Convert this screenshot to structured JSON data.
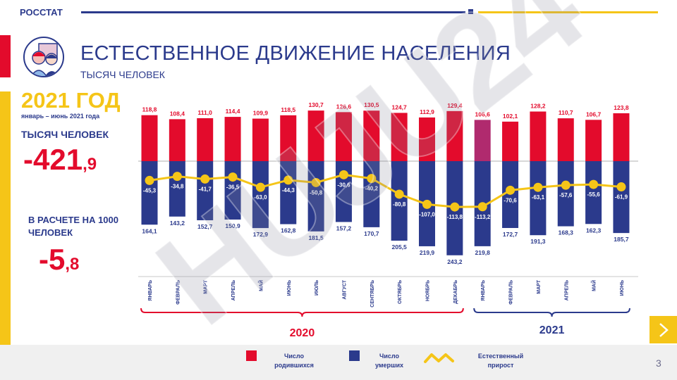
{
  "header": {
    "brand": "РОССТАТ"
  },
  "title": "ЕСТЕСТВЕННОЕ ДВИЖЕНИЕ НАСЕЛЕНИЯ",
  "subtitle": "ТЫСЯЧ ЧЕЛОВЕК",
  "sidebar": {
    "year_title": "2021 ГОД",
    "period": "январь – июнь 2021 года",
    "kpi1_label": "ТЫСЯЧ ЧЕЛОВЕК",
    "kpi1_main": "-421",
    "kpi1_frac": ",9",
    "kpi2_label": "В РАСЧЕТЕ НА 1000 ЧЕЛОВЕК",
    "kpi2_main": "-5",
    "kpi2_frac": ",8"
  },
  "watermark": "HUJU24",
  "legend": {
    "births": "Число родившихся",
    "deaths": "Число умерших",
    "growth": "Естественный прирост"
  },
  "page_number": "3",
  "colors": {
    "births": "#e30b2c",
    "deaths": "#2b3a8c",
    "growth": "#f5c518",
    "highlight": "#b02a6e"
  },
  "chart_data": {
    "type": "bar",
    "categories": [
      "ЯНВАРЬ",
      "ФЕВРАЛЬ",
      "МАРТ",
      "АПРЕЛЬ",
      "МАЙ",
      "ИЮНЬ",
      "ИЮЛЬ",
      "АВГУСТ",
      "СЕНТЯБРЬ",
      "ОКТЯБРЬ",
      "НОЯБРЬ",
      "ДЕКАБРЬ",
      "ЯНВАРЬ",
      "ФЕВРАЛЬ",
      "МАРТ",
      "АПРЕЛЬ",
      "МАЙ",
      "ИЮНЬ"
    ],
    "groups": [
      {
        "label": "2020",
        "count": 12
      },
      {
        "label": "2021",
        "count": 6
      }
    ],
    "series": [
      {
        "name": "Число родившихся",
        "values": [
          118.8,
          108.4,
          111.0,
          114.4,
          109.9,
          118.5,
          130.7,
          126.6,
          130.5,
          124.7,
          112.9,
          129.4,
          106.6,
          102.1,
          128.2,
          110.7,
          106.7,
          123.8
        ]
      },
      {
        "name": "Число умерших",
        "values": [
          164.1,
          143.2,
          152.7,
          150.9,
          172.9,
          162.8,
          181.5,
          157.2,
          170.7,
          205.5,
          219.9,
          243.2,
          219.8,
          172.7,
          191.3,
          168.3,
          162.3,
          185.7
        ]
      },
      {
        "name": "Естественный прирост",
        "values": [
          -45.3,
          -34.8,
          -41.7,
          -36.5,
          -63.0,
          -44.3,
          -50.8,
          -30.6,
          -40.2,
          -80.8,
          -107.0,
          -113.8,
          -113.2,
          -70.6,
          -63.1,
          -57.6,
          -55.6,
          -61.9
        ]
      }
    ],
    "birth_labels": [
      "118,8",
      "108,4",
      "111,0",
      "114,4",
      "109,9",
      "118,5",
      "130,7",
      "126,6",
      "130,5",
      "124,7",
      "112,9",
      "129,4",
      "106,6",
      "102,1",
      "128,2",
      "110,7",
      "106,7",
      "123,8"
    ],
    "death_labels": [
      "164,1",
      "143,2",
      "152,7",
      "150,9",
      "172,9",
      "162,8",
      "181,5",
      "157,2",
      "170,7",
      "205,5",
      "219,9",
      "243,2",
      "219,8",
      "172,7",
      "191,3",
      "168,3",
      "162,3",
      "185,7"
    ],
    "growth_labels": [
      "-45,3",
      "-34,8",
      "-41,7",
      "-36,5",
      "-63,0",
      "-44,3",
      "-50,8",
      "-30,6",
      "-40,2",
      "-80,8",
      "-107,0",
      "-113,8",
      "-113,2",
      "-70,6",
      "-63,1",
      "-57,6",
      "-55,6",
      "-61,9"
    ],
    "highlight_index": 12
  }
}
